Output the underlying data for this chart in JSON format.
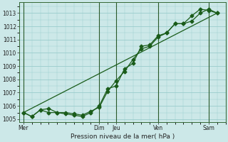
{
  "bg_color": "#cce8e8",
  "grid_color": "#99cccc",
  "line_color": "#1a5c1a",
  "xlabel": "Pression niveau de la mer( hPa )",
  "ylim": [
    1004.8,
    1013.8
  ],
  "yticks": [
    1005,
    1006,
    1007,
    1008,
    1009,
    1010,
    1011,
    1012,
    1013
  ],
  "day_labels": [
    "Mer",
    "Dim",
    "Jeu",
    "Ven",
    "Sam"
  ],
  "day_positions": [
    0.0,
    9.0,
    11.0,
    16.0,
    22.0
  ],
  "xlim": [
    -0.5,
    24.0
  ],
  "series1_x": [
    0,
    1,
    2,
    3,
    4,
    5,
    6,
    7,
    8,
    9,
    10,
    11,
    12,
    13,
    14,
    15,
    16,
    17,
    18,
    19,
    20,
    21,
    22,
    23
  ],
  "series1_y": [
    1005.5,
    1005.2,
    1005.7,
    1005.8,
    1005.5,
    1005.5,
    1005.4,
    1005.3,
    1005.6,
    1005.9,
    1007.1,
    1007.9,
    1008.6,
    1009.5,
    1010.3,
    1010.5,
    1011.2,
    1011.5,
    1012.2,
    1012.2,
    1012.8,
    1013.3,
    1013.2,
    1013.0
  ],
  "series2_x": [
    0,
    1,
    2,
    3,
    4,
    5,
    6,
    7,
    8,
    9,
    10,
    11,
    12,
    13,
    14,
    15,
    16,
    17,
    18,
    19,
    20,
    21,
    22,
    23
  ],
  "series2_y": [
    1005.5,
    1005.2,
    1005.7,
    1005.5,
    1005.5,
    1005.4,
    1005.3,
    1005.2,
    1005.5,
    1006.0,
    1007.3,
    1007.5,
    1008.8,
    1009.2,
    1010.5,
    1010.6,
    1011.3,
    1011.5,
    1012.2,
    1012.2,
    1012.4,
    1013.0,
    1013.3,
    1013.0
  ],
  "trend_x": [
    0,
    23
  ],
  "trend_y": [
    1005.5,
    1013.0
  ],
  "marker_size": 2.5,
  "lw": 0.9
}
